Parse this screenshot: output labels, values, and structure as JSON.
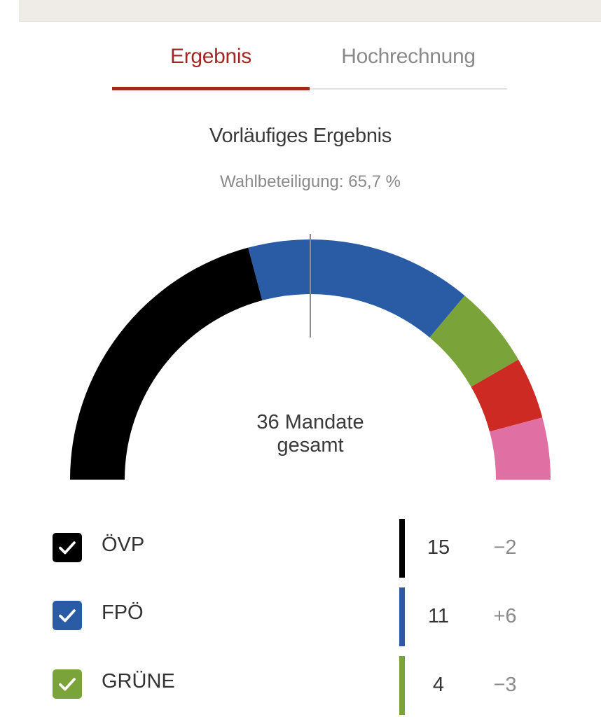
{
  "tabs": [
    {
      "label": "Ergebnis",
      "active": true
    },
    {
      "label": "Hochrechnung",
      "active": false
    }
  ],
  "heading": "Vorläufiges Ergebnis",
  "turnout": "Wahlbeteiligung: 65,7 %",
  "colors": {
    "accent": "#a02a22",
    "ovp": "#000000",
    "fpo": "#2a5ca6",
    "grune": "#7aa33a",
    "red_party": "#cc2a22",
    "pink_party": "#e070a3"
  },
  "chart_data": {
    "type": "pie",
    "shape": "semicircle",
    "center_label_line1": "36 Mandate",
    "center_label_line2": "gesamt",
    "total": 36,
    "slices": [
      {
        "name": "ÖVP",
        "value": 15,
        "color": "#000000"
      },
      {
        "name": "FPÖ",
        "value": 11,
        "color": "#2a5ca6"
      },
      {
        "name": "GRÜNE",
        "value": 4,
        "color": "#7aa33a"
      },
      {
        "value": 3,
        "color": "#cc2a22"
      },
      {
        "value": 3,
        "color": "#e070a3"
      }
    ],
    "majority_marker": true
  },
  "legend": [
    {
      "party": "ÖVP",
      "seats": "15",
      "change": "−2",
      "color": "#000000",
      "checked": true
    },
    {
      "party": "FPÖ",
      "seats": "11",
      "change": "+6",
      "color": "#2a5ca6",
      "checked": true
    },
    {
      "party": "GRÜNE",
      "seats": "4",
      "change": "−3",
      "color": "#7aa33a",
      "checked": true
    }
  ],
  "icons": {
    "check": "check-icon"
  }
}
